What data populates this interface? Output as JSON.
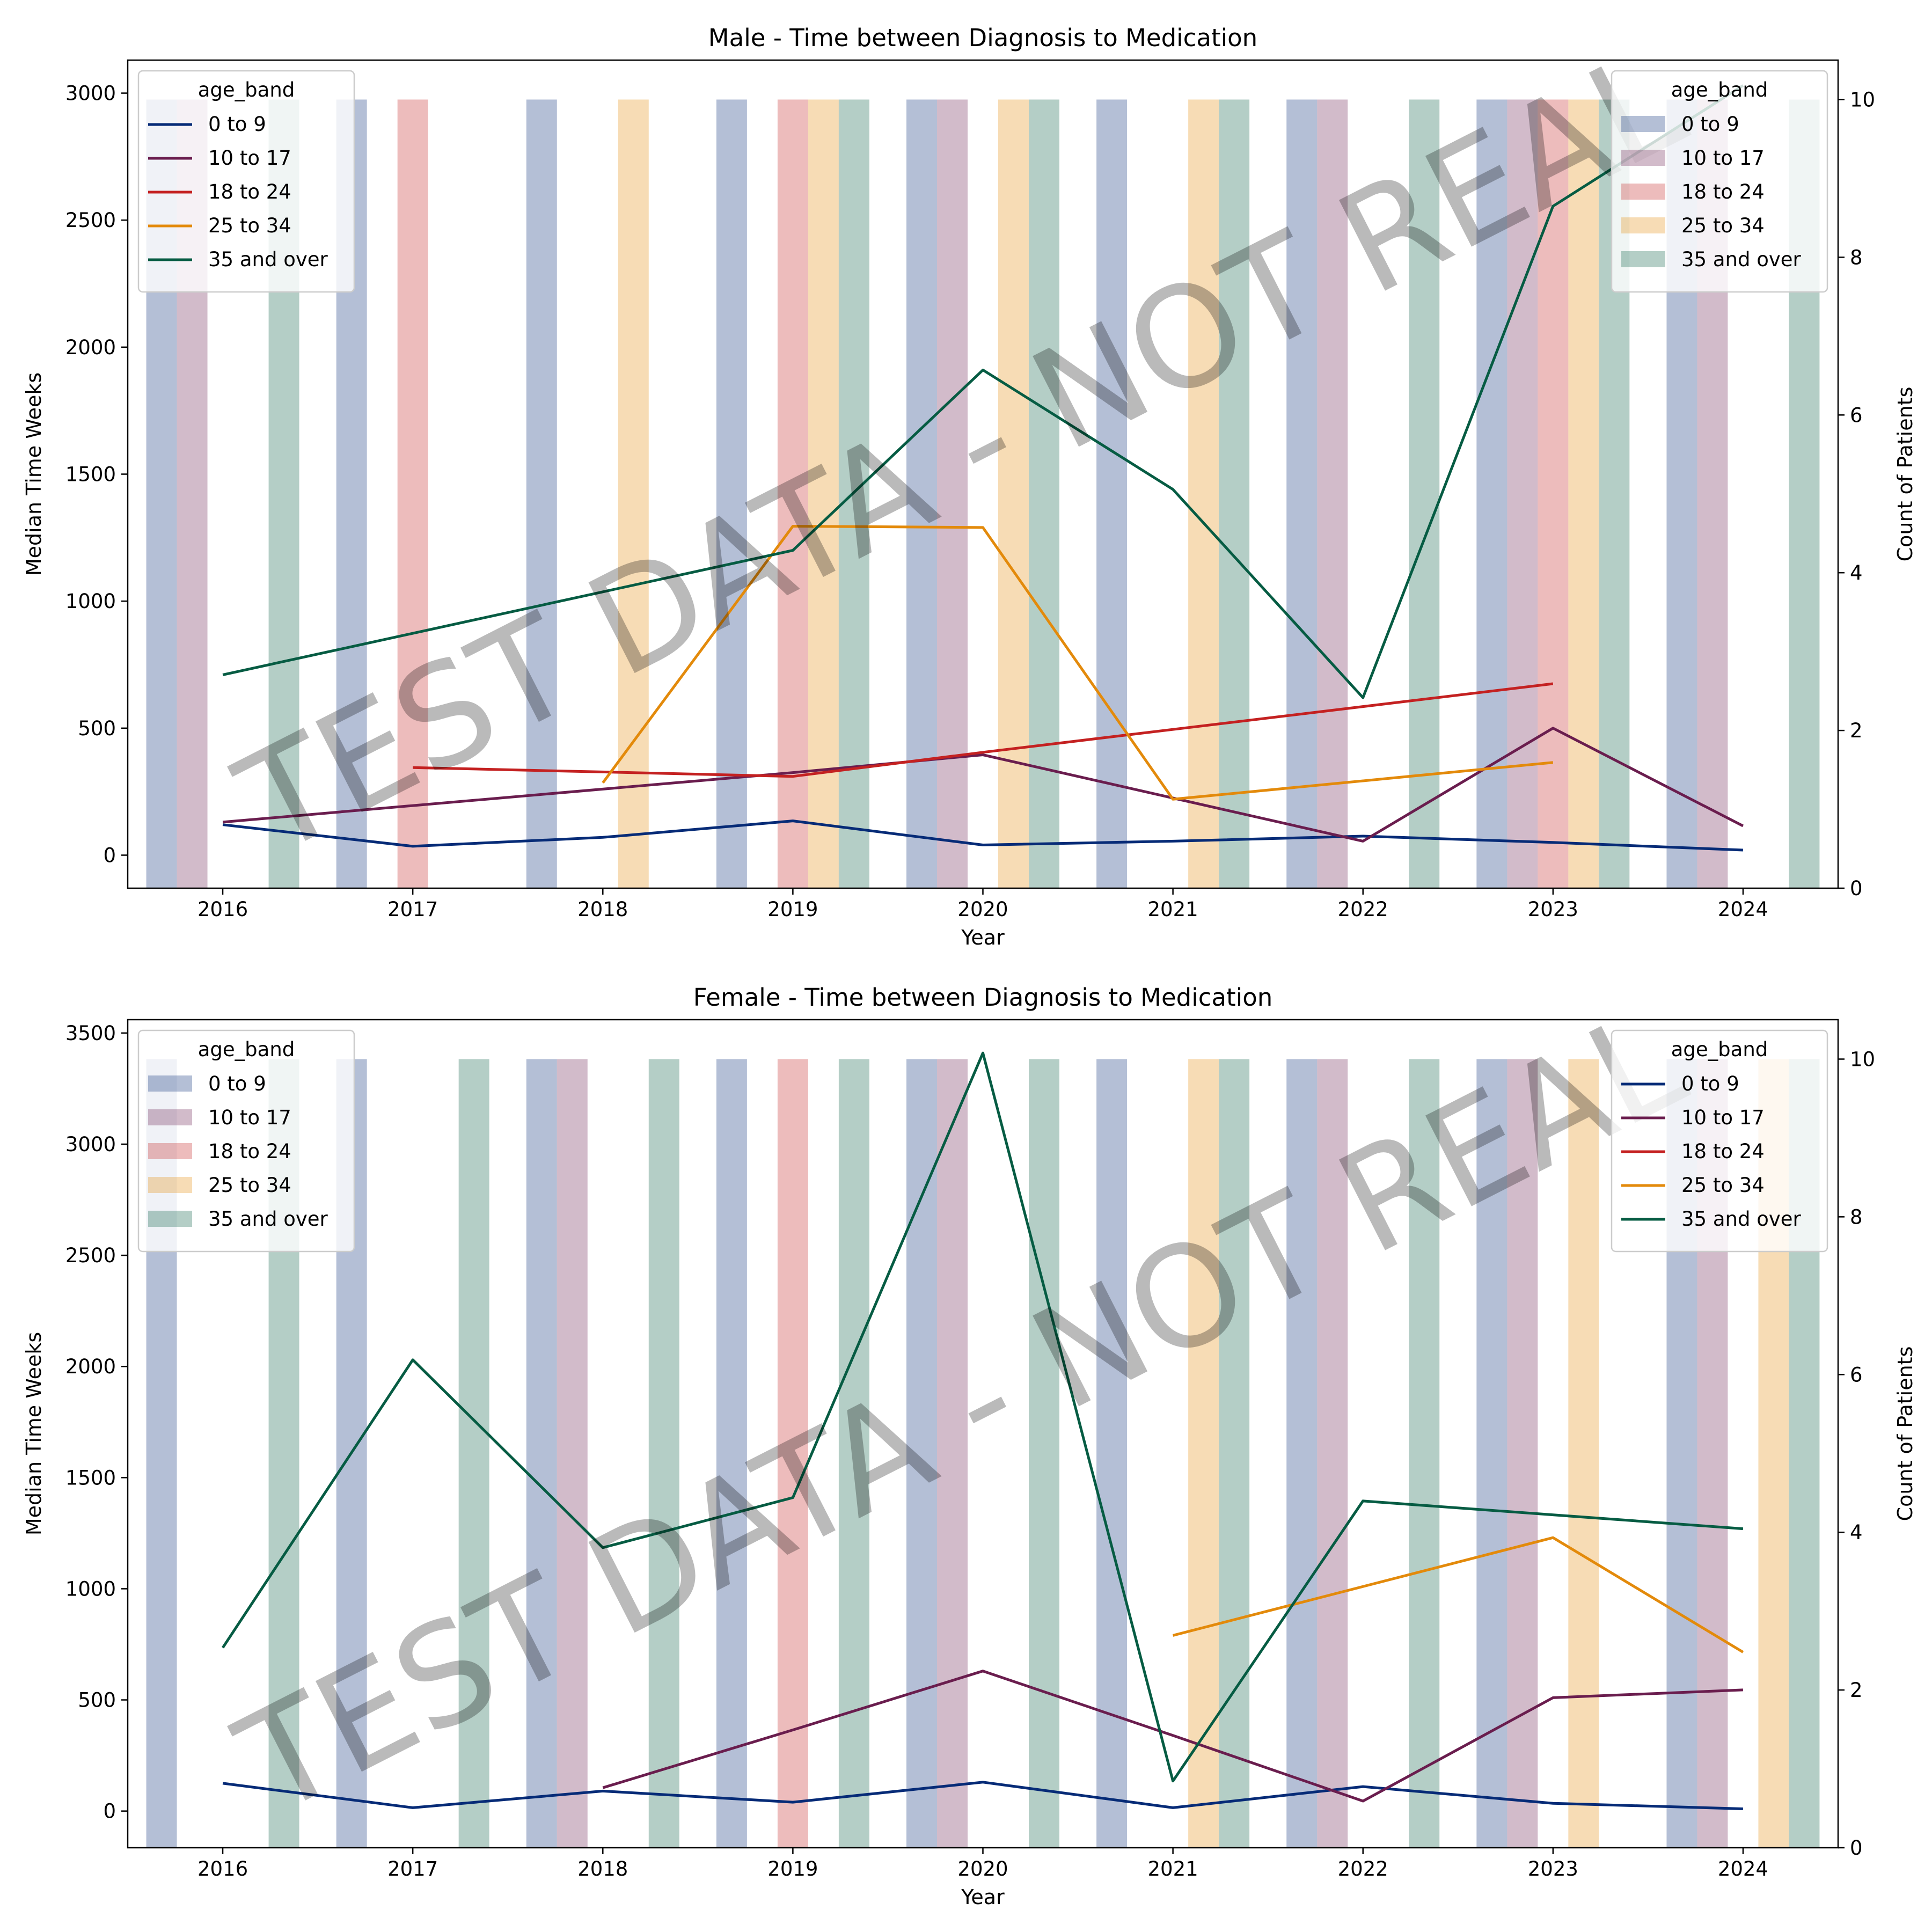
{
  "colors": {
    "0 to 9": "#062b77",
    "10 to 17": "#6a1d4e",
    "18 to 24": "#c42121",
    "25 to 34": "#e38a0b",
    "35 and over": "#065c43"
  },
  "watermark": "TEST DATA - NOT REAL",
  "chart_data": [
    {
      "type": "bar+line",
      "title": "Male - Time between Diagnosis to Medication",
      "xlabel": "Year",
      "ylabel": "Median Time Weeks",
      "y2label": "Count of Patients",
      "x": [
        2016,
        2017,
        2018,
        2019,
        2020,
        2021,
        2022,
        2023,
        2024
      ],
      "ylim": [
        -130,
        3130
      ],
      "yticks": [
        0,
        500,
        1000,
        1500,
        2000,
        2500,
        3000
      ],
      "y2lim": [
        0,
        10.5
      ],
      "y2ticks": [
        0,
        2,
        4,
        6,
        8,
        10
      ],
      "bar_legend": {
        "title": "age_band",
        "position": "upper right"
      },
      "line_legend": {
        "title": "age_band",
        "position": "upper left"
      },
      "bars": [
        {
          "name": "0 to 9",
          "values": [
            10,
            10,
            10,
            10,
            10,
            10,
            10,
            10,
            10
          ]
        },
        {
          "name": "10 to 17",
          "values": [
            10,
            0,
            0,
            0,
            10,
            0,
            10,
            10,
            10
          ]
        },
        {
          "name": "18 to 24",
          "values": [
            0,
            10,
            0,
            10,
            0,
            0,
            0,
            10,
            0
          ]
        },
        {
          "name": "25 to 34",
          "values": [
            0,
            0,
            10,
            10,
            10,
            10,
            0,
            10,
            0
          ]
        },
        {
          "name": "35 and over",
          "values": [
            10,
            0,
            0,
            10,
            10,
            10,
            10,
            10,
            10
          ]
        }
      ],
      "lines": [
        {
          "name": "0 to 9",
          "values": [
            120,
            35,
            70,
            135,
            40,
            55,
            75,
            50,
            20
          ]
        },
        {
          "name": "10 to 17",
          "values": [
            130,
            null,
            null,
            325,
            395,
            225,
            55,
            500,
            115
          ]
        },
        {
          "name": "18 to 24",
          "values": [
            null,
            345,
            null,
            310,
            405,
            null,
            null,
            675,
            null
          ]
        },
        {
          "name": "25 to 34",
          "values": [
            null,
            null,
            285,
            1295,
            1290,
            220,
            null,
            365,
            null
          ]
        },
        {
          "name": "35 and over",
          "values": [
            710,
            null,
            null,
            1200,
            1910,
            1440,
            620,
            2555,
            3030
          ]
        }
      ]
    },
    {
      "type": "bar+line",
      "title": "Female - Time between Diagnosis to Medication",
      "xlabel": "Year",
      "ylabel": "Median Time Weeks",
      "y2label": "Count of Patients",
      "x": [
        2016,
        2017,
        2018,
        2019,
        2020,
        2021,
        2022,
        2023,
        2024
      ],
      "ylim": [
        -165,
        3560
      ],
      "yticks": [
        0,
        500,
        1000,
        1500,
        2000,
        2500,
        3000,
        3500
      ],
      "y2lim": [
        0,
        10.5
      ],
      "y2ticks": [
        0,
        2,
        4,
        6,
        8,
        10
      ],
      "bar_legend": {
        "title": "age_band",
        "position": "upper left"
      },
      "line_legend": {
        "title": "age_band",
        "position": "upper right"
      },
      "bars": [
        {
          "name": "0 to 9",
          "values": [
            10,
            10,
            10,
            10,
            10,
            10,
            10,
            10,
            10
          ]
        },
        {
          "name": "10 to 17",
          "values": [
            0,
            0,
            10,
            0,
            10,
            0,
            10,
            10,
            10
          ]
        },
        {
          "name": "18 to 24",
          "values": [
            0,
            0,
            0,
            10,
            0,
            0,
            0,
            0,
            0
          ]
        },
        {
          "name": "25 to 34",
          "values": [
            0,
            0,
            0,
            0,
            0,
            10,
            0,
            10,
            10
          ]
        },
        {
          "name": "35 and over",
          "values": [
            10,
            10,
            10,
            10,
            10,
            10,
            10,
            0,
            10
          ]
        }
      ],
      "lines": [
        {
          "name": "0 to 9",
          "values": [
            125,
            15,
            90,
            40,
            130,
            15,
            110,
            35,
            10
          ]
        },
        {
          "name": "10 to 17",
          "values": [
            null,
            null,
            105,
            365,
            630,
            340,
            45,
            510,
            545
          ]
        },
        {
          "name": "18 to 24",
          "values": [
            null,
            null,
            null,
            null,
            null,
            null,
            null,
            null,
            null
          ]
        },
        {
          "name": "25 to 34",
          "values": [
            null,
            null,
            null,
            null,
            null,
            790,
            null,
            1230,
            715
          ]
        },
        {
          "name": "35 and over",
          "values": [
            735,
            2030,
            1185,
            1410,
            3410,
            135,
            1395,
            null,
            1270
          ]
        }
      ]
    }
  ]
}
